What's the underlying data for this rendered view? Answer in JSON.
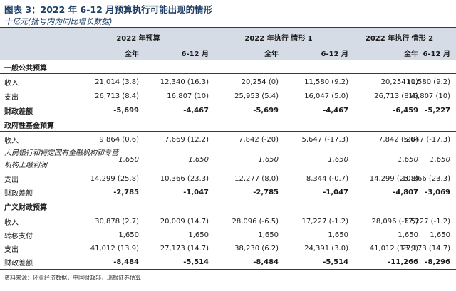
{
  "title": "图表 3：2022 年 6-12 月预算执行可能出现的情形",
  "subtitle": "十亿元(括号内为同比增长数据)",
  "header": {
    "groups": [
      "2022 年预算",
      "2022 年执行 情形 1",
      "2022 年执行 情形 2"
    ],
    "subcols": [
      "全年",
      "6-12 月",
      "全年",
      "6-12 月",
      "全年",
      "6-12 月"
    ]
  },
  "sections": [
    {
      "title": "一般公共预算",
      "rows": [
        {
          "label": "收入",
          "values": [
            "21,014 (3.8)",
            "12,340 (16.3)",
            "20,254 (0)",
            "11,580 (9.2)",
            "20,254 (0)",
            "11,580 (9.2)"
          ]
        },
        {
          "label": "支出",
          "values": [
            "26,713 (8.4)",
            "16,807 (10)",
            "25,953 (5.4)",
            "16,047 (5.0)",
            "26,713 (8.4)",
            "16,807 (10)"
          ]
        },
        {
          "label": "财政差额",
          "values": [
            "-5,699",
            "-4,467",
            "-5,699",
            "-4,467",
            "-6,459",
            "-5,227"
          ]
        }
      ]
    },
    {
      "title": "政府性基金预算",
      "rows": [
        {
          "label": "收入",
          "values": [
            "9,864 (0.6)",
            "7,669 (12.2)",
            "7,842 (-20)",
            "5,647 (-17.3)",
            "7,842 (-20)",
            "5,647 (-17.3)"
          ]
        },
        {
          "label": "人民银行和特定国有金融机构和专营机构上缴利润",
          "values": [
            "1,650",
            "1,650",
            "1,650",
            "1,650",
            "1,650",
            "1,650"
          ]
        },
        {
          "label": "支出",
          "values": [
            "14,299 (25.8)",
            "10,366 (23.3)",
            "12,277 (8.0)",
            "8,344 (-0.7)",
            "14,299 (25.8)",
            "10,366 (23.3)"
          ]
        },
        {
          "label": "财政差额",
          "values": [
            "-2,785",
            "-1,047",
            "-2,785",
            "-1,047",
            "-4,807",
            "-3,069"
          ]
        }
      ]
    },
    {
      "title": "广义财政预算",
      "rows": [
        {
          "label": "收入",
          "values": [
            "30,878 (2.7)",
            "20,009 (14.7)",
            "28,096 (-6.5)",
            "17,227 (-1.2)",
            "28,096 (-6.5)",
            "17,227 (-1.2)"
          ]
        },
        {
          "label": "转移支付",
          "values": [
            "1,650",
            "1,650",
            "1,650",
            "1,650",
            "1,650",
            "1,650"
          ]
        },
        {
          "label": "支出",
          "values": [
            "41,012 (13.9)",
            "27,173 (14.7)",
            "38,230 (6.2)",
            "24,391 (3.0)",
            "41,012 (13.9)",
            "27,173 (14.7)"
          ]
        },
        {
          "label": "财政差额",
          "values": [
            "-8,484",
            "-5,514",
            "-8,484",
            "-5,514",
            "-11,266",
            "-8,296"
          ]
        }
      ]
    }
  ],
  "source": "资料来源：环亚经济数据，中国财政部，瑞银证券估算"
}
